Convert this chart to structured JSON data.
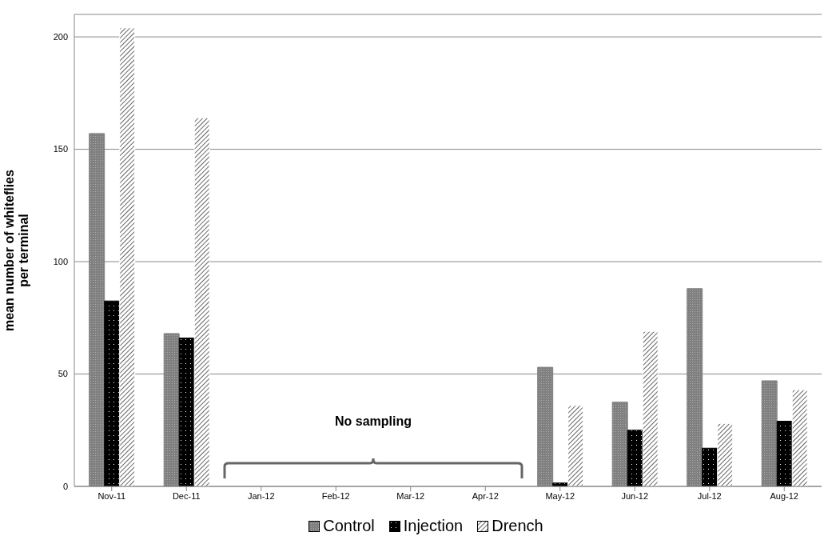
{
  "chart_data": {
    "type": "bar",
    "ylabel": "mean number of whiteflies per terminal",
    "categories": [
      "Nov-11",
      "Dec-11",
      "Jan-12",
      "Feb-12",
      "Mar-12",
      "Apr-12",
      "May-12",
      "Jun-12",
      "Jul-12",
      "Aug-12"
    ],
    "series": [
      {
        "name": "Control",
        "color": "#808080",
        "values": [
          157,
          68,
          null,
          null,
          null,
          null,
          53,
          37.5,
          88,
          47
        ]
      },
      {
        "name": "Injection",
        "color": "#000000",
        "values": [
          82.5,
          66,
          null,
          null,
          null,
          null,
          1.5,
          25,
          17,
          29
        ]
      },
      {
        "name": "Drench",
        "color": "#ffffff",
        "values": [
          204,
          164,
          null,
          null,
          null,
          null,
          36,
          69,
          28,
          43
        ]
      }
    ],
    "ylim": [
      0,
      210
    ],
    "yticks": [
      0,
      50,
      100,
      150,
      200
    ],
    "grid": "y",
    "legend": "bottom",
    "annotations": [
      "No sampling"
    ]
  }
}
